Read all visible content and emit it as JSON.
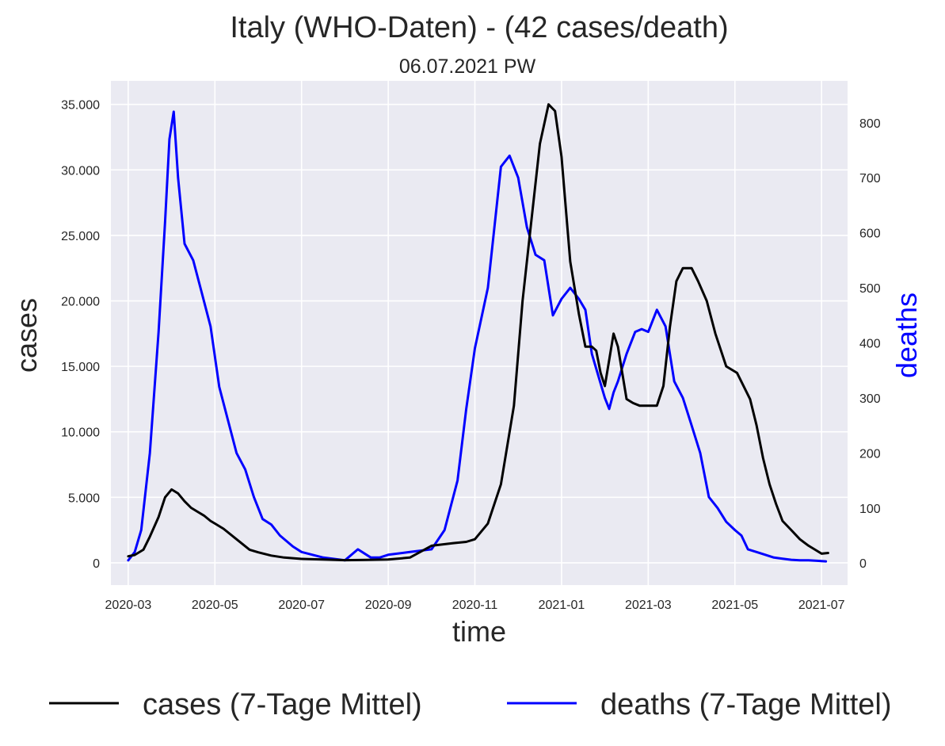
{
  "chart_data": {
    "type": "line",
    "title": "Italy (WHO-Daten) - (42 cases/death)",
    "subtitle": "06.07.2021 PW",
    "xlabel": "time",
    "ylabel_left": "cases",
    "ylabel_right": "deaths",
    "grid": true,
    "legend_position": "bottom",
    "x_ticks": [
      "2020-03",
      "2020-05",
      "2020-07",
      "2020-09",
      "2020-11",
      "2021-01",
      "2021-03",
      "2021-05",
      "2021-07"
    ],
    "y_left_ticks": [
      0,
      5000,
      10000,
      15000,
      20000,
      25000,
      30000,
      35000
    ],
    "y_left_tick_labels": [
      "0",
      "5.000",
      "10.000",
      "15.000",
      "20.000",
      "25.000",
      "30.000",
      "35.000"
    ],
    "y_left_lim": [
      -1700,
      36800
    ],
    "y_right_ticks": [
      0,
      100,
      200,
      300,
      400,
      500,
      600,
      700,
      800
    ],
    "y_right_tick_labels": [
      "0",
      "100",
      "200",
      "300",
      "400",
      "500",
      "600",
      "700",
      "800"
    ],
    "y_right_lim": [
      -40,
      876
    ],
    "x_lim_months": [
      -0.4,
      16.6
    ],
    "series": [
      {
        "name": "cases (7-Tage Mittel)",
        "axis": "left",
        "color": "#000000",
        "x_months": [
          0.0,
          0.15,
          0.35,
          0.5,
          0.7,
          0.85,
          1.0,
          1.15,
          1.3,
          1.45,
          1.6,
          1.75,
          1.9,
          2.0,
          2.2,
          2.5,
          2.8,
          3.0,
          3.3,
          3.6,
          4.0,
          4.5,
          5.0,
          5.5,
          6.0,
          6.5,
          7.0,
          7.5,
          7.8,
          8.0,
          8.3,
          8.6,
          8.9,
          9.1,
          9.3,
          9.5,
          9.7,
          9.85,
          10.0,
          10.2,
          10.4,
          10.55,
          10.7,
          10.8,
          10.9,
          11.0,
          11.1,
          11.2,
          11.3,
          11.5,
          11.65,
          11.8,
          12.0,
          12.2,
          12.35,
          12.5,
          12.65,
          12.8,
          13.0,
          13.15,
          13.35,
          13.55,
          13.8,
          14.05,
          14.2,
          14.35,
          14.5,
          14.65,
          14.8,
          14.95,
          15.1,
          15.3,
          15.5,
          15.7,
          15.9,
          16.0,
          16.15
        ],
        "values": [
          500,
          600,
          1000,
          2000,
          3500,
          5000,
          5600,
          5300,
          4700,
          4200,
          3900,
          3600,
          3200,
          3000,
          2600,
          1800,
          1000,
          800,
          550,
          400,
          300,
          250,
          200,
          220,
          250,
          400,
          1300,
          1500,
          1600,
          1800,
          3000,
          6000,
          12000,
          20000,
          26000,
          32000,
          35000,
          34500,
          31000,
          23000,
          19000,
          16500,
          16500,
          16200,
          14500,
          13500,
          15500,
          17500,
          16500,
          12500,
          12200,
          12000,
          12000,
          12000,
          13500,
          18000,
          21500,
          22500,
          22500,
          21500,
          20000,
          17500,
          15000,
          14500,
          13500,
          12500,
          10500,
          8000,
          6000,
          4500,
          3200,
          2500,
          1800,
          1300,
          900,
          700,
          750
        ]
      },
      {
        "name": "deaths (7-Tage Mittel)",
        "axis": "right",
        "color": "#0000ff",
        "x_months": [
          0.0,
          0.15,
          0.3,
          0.5,
          0.7,
          0.85,
          0.95,
          1.05,
          1.15,
          1.3,
          1.5,
          1.7,
          1.9,
          2.1,
          2.3,
          2.5,
          2.7,
          2.9,
          3.1,
          3.3,
          3.5,
          3.8,
          4.0,
          4.5,
          5.0,
          5.3,
          5.6,
          5.8,
          6.0,
          6.5,
          7.0,
          7.3,
          7.6,
          7.8,
          8.0,
          8.3,
          8.6,
          8.8,
          9.0,
          9.2,
          9.4,
          9.6,
          9.8,
          10.0,
          10.2,
          10.4,
          10.55,
          10.7,
          10.85,
          11.0,
          11.1,
          11.2,
          11.3,
          11.5,
          11.7,
          11.85,
          12.0,
          12.2,
          12.4,
          12.6,
          12.8,
          13.0,
          13.2,
          13.4,
          13.6,
          13.8,
          14.0,
          14.15,
          14.3,
          14.5,
          14.7,
          14.9,
          15.1,
          15.3,
          15.5,
          15.7,
          15.9,
          16.1
        ],
        "values": [
          5,
          20,
          60,
          200,
          420,
          620,
          770,
          820,
          700,
          580,
          550,
          490,
          430,
          320,
          260,
          200,
          170,
          120,
          80,
          70,
          50,
          30,
          20,
          10,
          5,
          25,
          10,
          10,
          15,
          20,
          25,
          60,
          150,
          280,
          390,
          500,
          720,
          740,
          700,
          610,
          560,
          550,
          450,
          480,
          500,
          480,
          460,
          380,
          340,
          300,
          280,
          310,
          330,
          380,
          420,
          425,
          420,
          460,
          430,
          330,
          300,
          250,
          200,
          120,
          100,
          75,
          60,
          50,
          25,
          20,
          15,
          10,
          8,
          6,
          5,
          5,
          4,
          3
        ]
      }
    ]
  }
}
